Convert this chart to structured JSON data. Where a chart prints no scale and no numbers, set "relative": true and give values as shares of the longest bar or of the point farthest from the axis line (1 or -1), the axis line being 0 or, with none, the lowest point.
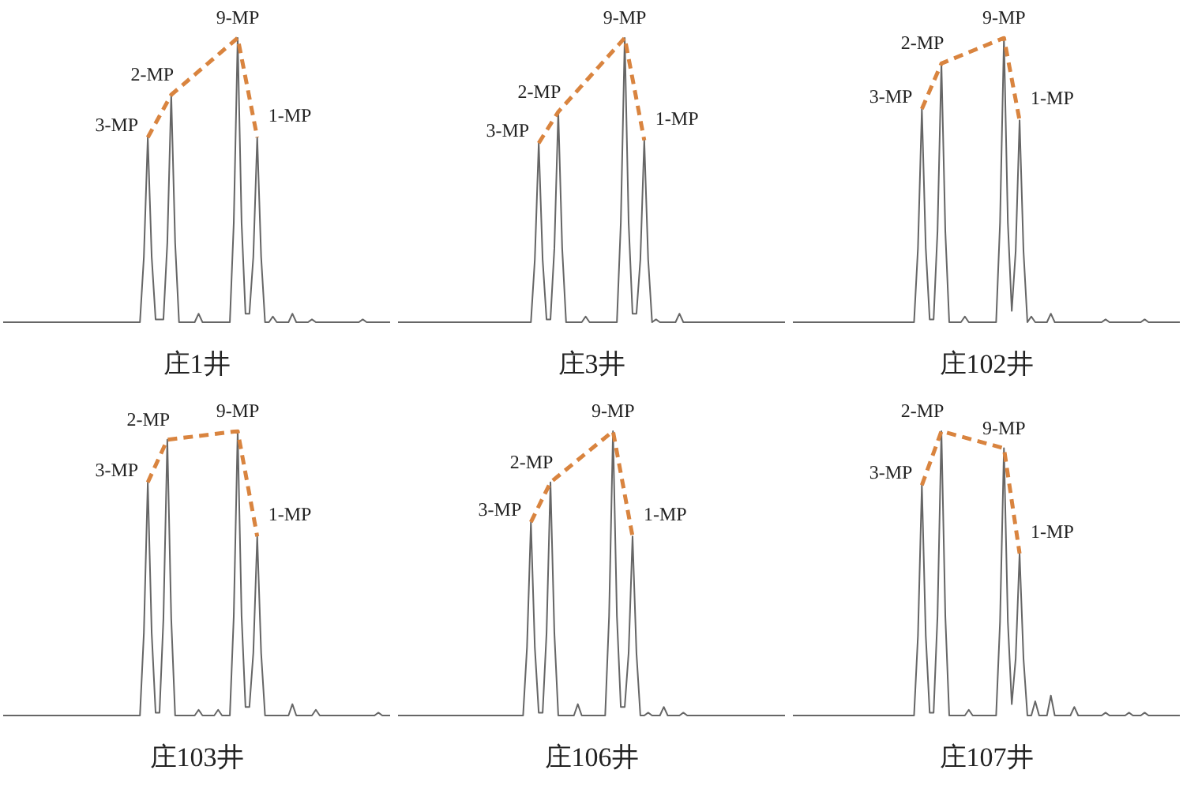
{
  "chart_data": [
    {
      "type": "line",
      "title": "庄1井",
      "relative": true,
      "tick_labels": false,
      "annotations": [
        "3-MP",
        "2-MP",
        "9-MP",
        "1-MP"
      ],
      "categories": [
        null,
        null,
        null,
        null,
        null,
        null,
        null,
        null,
        null,
        null,
        null,
        null,
        null,
        null,
        null,
        null,
        null,
        null,
        null,
        null,
        null,
        null,
        null,
        null,
        null,
        null,
        null,
        null,
        null,
        null,
        null,
        null,
        null,
        null,
        null,
        null,
        null,
        null,
        null,
        null,
        null,
        null,
        null,
        null,
        null,
        null,
        null,
        null,
        null,
        null,
        null,
        null,
        null,
        null,
        null,
        null,
        null,
        null,
        null,
        null,
        null,
        null,
        null,
        null,
        null,
        null,
        null,
        null,
        null,
        null,
        null,
        null,
        null,
        null,
        null,
        null,
        null,
        null,
        null,
        null,
        null,
        null,
        null,
        null,
        null,
        null,
        null,
        null,
        null,
        null,
        null,
        null,
        null,
        null,
        null,
        null,
        null,
        null,
        null,
        null
      ],
      "series": [
        {
          "color": "#666666",
          "values": [
            0,
            0,
            0,
            0,
            0,
            0,
            0,
            0,
            0,
            0,
            0,
            0,
            0,
            0,
            0,
            0,
            0,
            0,
            0,
            0,
            0,
            0,
            0,
            0,
            0,
            0,
            0,
            0,
            0,
            0,
            0,
            0,
            0,
            0,
            0,
            0,
            0.23,
            0.65,
            0.23,
            0.01,
            0.01,
            0.01,
            0.28,
            0.8,
            0.28,
            0,
            0,
            0,
            0,
            0,
            0.03,
            0,
            0,
            0,
            0,
            0,
            0,
            0,
            0,
            0.35,
            1,
            0.35,
            0.03,
            0.03,
            0.23,
            0.65,
            0.23,
            0,
            0,
            0.02,
            0,
            0,
            0,
            0,
            0.03,
            0,
            0,
            0,
            0,
            0.01,
            0,
            0,
            0,
            0,
            0,
            0,
            0,
            0,
            0,
            0,
            0,
            0,
            0.01,
            0,
            0,
            0,
            0,
            0,
            0,
            0
          ]
        },
        {
          "color": "#d9843f",
          "line_style": "dashed",
          "values": [
            null,
            null,
            null,
            null,
            null,
            null,
            null,
            null,
            null,
            null,
            null,
            null,
            null,
            null,
            null,
            null,
            null,
            null,
            null,
            null,
            null,
            null,
            null,
            null,
            null,
            null,
            null,
            null,
            null,
            null,
            null,
            null,
            null,
            null,
            null,
            null,
            null,
            0.65,
            null,
            null,
            null,
            null,
            null,
            0.8,
            null,
            null,
            null,
            null,
            null,
            null,
            null,
            null,
            null,
            null,
            null,
            null,
            null,
            null,
            null,
            null,
            1,
            null,
            null,
            null,
            null,
            0.65,
            null,
            null,
            null,
            null,
            null,
            null,
            null,
            null,
            null,
            null,
            null,
            null,
            null,
            null,
            null,
            null,
            null,
            null,
            null,
            null,
            null,
            null,
            null,
            null,
            null,
            null,
            null,
            null,
            null,
            null,
            null,
            null,
            null,
            null
          ]
        }
      ]
    },
    {
      "type": "line",
      "title": "庄3井",
      "relative": true,
      "tick_labels": false,
      "annotations": [
        "3-MP",
        "2-MP",
        "9-MP",
        "1-MP"
      ],
      "categories": [
        null,
        null,
        null,
        null,
        null,
        null,
        null,
        null,
        null,
        null,
        null,
        null,
        null,
        null,
        null,
        null,
        null,
        null,
        null,
        null,
        null,
        null,
        null,
        null,
        null,
        null,
        null,
        null,
        null,
        null,
        null,
        null,
        null,
        null,
        null,
        null,
        null,
        null,
        null,
        null,
        null,
        null,
        null,
        null,
        null,
        null,
        null,
        null,
        null,
        null,
        null,
        null,
        null,
        null,
        null,
        null,
        null,
        null,
        null,
        null,
        null,
        null,
        null,
        null,
        null,
        null,
        null,
        null,
        null,
        null,
        null,
        null,
        null,
        null,
        null,
        null,
        null,
        null,
        null,
        null,
        null,
        null,
        null,
        null,
        null,
        null,
        null,
        null,
        null,
        null,
        null,
        null,
        null,
        null,
        null,
        null,
        null,
        null,
        null,
        null
      ],
      "series": [
        {
          "color": "#666666",
          "values": [
            0,
            0,
            0,
            0,
            0,
            0,
            0,
            0,
            0,
            0,
            0,
            0,
            0,
            0,
            0,
            0,
            0,
            0,
            0,
            0,
            0,
            0,
            0,
            0,
            0,
            0,
            0,
            0,
            0,
            0,
            0,
            0,
            0,
            0,
            0,
            0.22,
            0.63,
            0.22,
            0.01,
            0.01,
            0.26,
            0.74,
            0.26,
            0,
            0,
            0,
            0,
            0,
            0.02,
            0,
            0,
            0,
            0,
            0,
            0,
            0,
            0,
            0.35,
            1,
            0.35,
            0.03,
            0.03,
            0.22,
            0.64,
            0.22,
            0,
            0.01,
            0,
            0,
            0,
            0,
            0,
            0.03,
            0,
            0,
            0,
            0,
            0,
            0,
            0,
            0,
            0,
            0,
            0,
            0,
            0,
            0,
            0,
            0,
            0,
            0,
            0,
            0,
            0,
            0,
            0,
            0,
            0,
            0,
            0
          ]
        },
        {
          "color": "#d9843f",
          "line_style": "dashed",
          "values": [
            null,
            null,
            null,
            null,
            null,
            null,
            null,
            null,
            null,
            null,
            null,
            null,
            null,
            null,
            null,
            null,
            null,
            null,
            null,
            null,
            null,
            null,
            null,
            null,
            null,
            null,
            null,
            null,
            null,
            null,
            null,
            null,
            null,
            null,
            null,
            null,
            0.63,
            null,
            null,
            null,
            null,
            0.74,
            null,
            null,
            null,
            null,
            null,
            null,
            null,
            null,
            null,
            null,
            null,
            null,
            null,
            null,
            null,
            null,
            1,
            null,
            null,
            null,
            null,
            0.64,
            null,
            null,
            null,
            null,
            null,
            null,
            null,
            null,
            null,
            null,
            null,
            null,
            null,
            null,
            null,
            null,
            null,
            null,
            null,
            null,
            null,
            null,
            null,
            null,
            null,
            null,
            null,
            null,
            null,
            null,
            null,
            null,
            null,
            null,
            null,
            null
          ]
        }
      ]
    },
    {
      "type": "line",
      "title": "庄102井",
      "relative": true,
      "tick_labels": false,
      "annotations": [
        "3-MP",
        "2-MP",
        "9-MP",
        "1-MP"
      ],
      "categories": [
        null,
        null,
        null,
        null,
        null,
        null,
        null,
        null,
        null,
        null,
        null,
        null,
        null,
        null,
        null,
        null,
        null,
        null,
        null,
        null,
        null,
        null,
        null,
        null,
        null,
        null,
        null,
        null,
        null,
        null,
        null,
        null,
        null,
        null,
        null,
        null,
        null,
        null,
        null,
        null,
        null,
        null,
        null,
        null,
        null,
        null,
        null,
        null,
        null,
        null,
        null,
        null,
        null,
        null,
        null,
        null,
        null,
        null,
        null,
        null,
        null,
        null,
        null,
        null,
        null,
        null,
        null,
        null,
        null,
        null,
        null,
        null,
        null,
        null,
        null,
        null,
        null,
        null,
        null,
        null,
        null,
        null,
        null,
        null,
        null,
        null,
        null,
        null,
        null,
        null,
        null,
        null,
        null,
        null,
        null,
        null,
        null,
        null,
        null,
        null
      ],
      "series": [
        {
          "color": "#666666",
          "values": [
            0,
            0,
            0,
            0,
            0,
            0,
            0,
            0,
            0,
            0,
            0,
            0,
            0,
            0,
            0,
            0,
            0,
            0,
            0,
            0,
            0,
            0,
            0,
            0,
            0,
            0,
            0,
            0,
            0,
            0,
            0,
            0,
            0.26,
            0.75,
            0.26,
            0.01,
            0.01,
            0.32,
            0.91,
            0.32,
            0,
            0,
            0,
            0,
            0.02,
            0,
            0,
            0,
            0,
            0,
            0,
            0,
            0,
            0.35,
            1,
            0.35,
            0.04,
            0.25,
            0.71,
            0.25,
            0,
            0.02,
            0,
            0,
            0,
            0,
            0.03,
            0,
            0,
            0,
            0,
            0,
            0,
            0,
            0,
            0,
            0,
            0,
            0,
            0,
            0.01,
            0,
            0,
            0,
            0,
            0,
            0,
            0,
            0,
            0,
            0.01,
            0,
            0,
            0,
            0,
            0,
            0,
            0,
            0,
            0
          ]
        },
        {
          "color": "#d9843f",
          "line_style": "dashed",
          "values": [
            null,
            null,
            null,
            null,
            null,
            null,
            null,
            null,
            null,
            null,
            null,
            null,
            null,
            null,
            null,
            null,
            null,
            null,
            null,
            null,
            null,
            null,
            null,
            null,
            null,
            null,
            null,
            null,
            null,
            null,
            null,
            null,
            null,
            0.75,
            null,
            null,
            null,
            null,
            0.91,
            null,
            null,
            null,
            null,
            null,
            null,
            null,
            null,
            null,
            null,
            null,
            null,
            null,
            null,
            null,
            1,
            null,
            null,
            null,
            0.71,
            null,
            null,
            null,
            null,
            null,
            null,
            null,
            null,
            null,
            null,
            null,
            null,
            null,
            null,
            null,
            null,
            null,
            null,
            null,
            null,
            null,
            null,
            null,
            null,
            null,
            null,
            null,
            null,
            null,
            null,
            null,
            null,
            null,
            null,
            null,
            null,
            null,
            null,
            null,
            null,
            null
          ]
        }
      ]
    },
    {
      "type": "line",
      "title": "庄103井",
      "relative": true,
      "tick_labels": false,
      "annotations": [
        "3-MP",
        "2-MP",
        "9-MP",
        "1-MP"
      ],
      "categories": [
        null,
        null,
        null,
        null,
        null,
        null,
        null,
        null,
        null,
        null,
        null,
        null,
        null,
        null,
        null,
        null,
        null,
        null,
        null,
        null,
        null,
        null,
        null,
        null,
        null,
        null,
        null,
        null,
        null,
        null,
        null,
        null,
        null,
        null,
        null,
        null,
        null,
        null,
        null,
        null,
        null,
        null,
        null,
        null,
        null,
        null,
        null,
        null,
        null,
        null,
        null,
        null,
        null,
        null,
        null,
        null,
        null,
        null,
        null,
        null,
        null,
        null,
        null,
        null,
        null,
        null,
        null,
        null,
        null,
        null,
        null,
        null,
        null,
        null,
        null,
        null,
        null,
        null,
        null,
        null,
        null,
        null,
        null,
        null,
        null,
        null,
        null,
        null,
        null,
        null,
        null,
        null,
        null,
        null,
        null,
        null,
        null,
        null,
        null,
        null
      ],
      "series": [
        {
          "color": "#666666",
          "values": [
            0,
            0,
            0,
            0,
            0,
            0,
            0,
            0,
            0,
            0,
            0,
            0,
            0,
            0,
            0,
            0,
            0,
            0,
            0,
            0,
            0,
            0,
            0,
            0,
            0,
            0,
            0,
            0,
            0,
            0,
            0,
            0,
            0,
            0,
            0,
            0,
            0.29,
            0.82,
            0.29,
            0.01,
            0.01,
            0.34,
            0.97,
            0.34,
            0,
            0,
            0,
            0,
            0,
            0,
            0.02,
            0,
            0,
            0,
            0,
            0.02,
            0,
            0,
            0,
            0.35,
            1,
            0.35,
            0.03,
            0.03,
            0.22,
            0.63,
            0.22,
            0,
            0,
            0,
            0,
            0,
            0,
            0,
            0.04,
            0,
            0,
            0,
            0,
            0,
            0.02,
            0,
            0,
            0,
            0,
            0,
            0,
            0,
            0,
            0,
            0,
            0,
            0,
            0,
            0,
            0,
            0.01,
            0,
            0,
            0
          ]
        },
        {
          "color": "#d9843f",
          "line_style": "dashed",
          "values": [
            null,
            null,
            null,
            null,
            null,
            null,
            null,
            null,
            null,
            null,
            null,
            null,
            null,
            null,
            null,
            null,
            null,
            null,
            null,
            null,
            null,
            null,
            null,
            null,
            null,
            null,
            null,
            null,
            null,
            null,
            null,
            null,
            null,
            null,
            null,
            null,
            null,
            0.82,
            null,
            null,
            null,
            null,
            0.97,
            null,
            null,
            null,
            null,
            null,
            null,
            null,
            null,
            null,
            null,
            null,
            null,
            null,
            null,
            null,
            null,
            null,
            1,
            null,
            null,
            null,
            null,
            0.63,
            null,
            null,
            null,
            null,
            null,
            null,
            null,
            null,
            null,
            null,
            null,
            null,
            null,
            null,
            null,
            null,
            null,
            null,
            null,
            null,
            null,
            null,
            null,
            null,
            null,
            null,
            null,
            null,
            null,
            null,
            null,
            null,
            null,
            null
          ]
        }
      ]
    },
    {
      "type": "line",
      "title": "庄106井",
      "relative": true,
      "tick_labels": false,
      "annotations": [
        "3-MP",
        "2-MP",
        "9-MP",
        "1-MP"
      ],
      "categories": [
        null,
        null,
        null,
        null,
        null,
        null,
        null,
        null,
        null,
        null,
        null,
        null,
        null,
        null,
        null,
        null,
        null,
        null,
        null,
        null,
        null,
        null,
        null,
        null,
        null,
        null,
        null,
        null,
        null,
        null,
        null,
        null,
        null,
        null,
        null,
        null,
        null,
        null,
        null,
        null,
        null,
        null,
        null,
        null,
        null,
        null,
        null,
        null,
        null,
        null,
        null,
        null,
        null,
        null,
        null,
        null,
        null,
        null,
        null,
        null,
        null,
        null,
        null,
        null,
        null,
        null,
        null,
        null,
        null,
        null,
        null,
        null,
        null,
        null,
        null,
        null,
        null,
        null,
        null,
        null,
        null,
        null,
        null,
        null,
        null,
        null,
        null,
        null,
        null,
        null,
        null,
        null,
        null,
        null,
        null,
        null,
        null,
        null,
        null,
        null
      ],
      "series": [
        {
          "color": "#666666",
          "values": [
            0,
            0,
            0,
            0,
            0,
            0,
            0,
            0,
            0,
            0,
            0,
            0,
            0,
            0,
            0,
            0,
            0,
            0,
            0,
            0,
            0,
            0,
            0,
            0,
            0,
            0,
            0,
            0,
            0,
            0,
            0,
            0,
            0,
            0.24,
            0.68,
            0.24,
            0.01,
            0.01,
            0.29,
            0.82,
            0.29,
            0,
            0,
            0,
            0,
            0,
            0.04,
            0,
            0,
            0,
            0,
            0,
            0,
            0,
            0.35,
            1,
            0.35,
            0.03,
            0.03,
            0.22,
            0.63,
            0.22,
            0,
            0,
            0.01,
            0,
            0,
            0,
            0.03,
            0,
            0,
            0,
            0,
            0.01,
            0,
            0,
            0,
            0,
            0,
            0,
            0,
            0,
            0,
            0,
            0,
            0,
            0,
            0,
            0,
            0,
            0,
            0,
            0,
            0,
            0,
            0,
            0,
            0,
            0,
            0
          ]
        },
        {
          "color": "#d9843f",
          "line_style": "dashed",
          "values": [
            null,
            null,
            null,
            null,
            null,
            null,
            null,
            null,
            null,
            null,
            null,
            null,
            null,
            null,
            null,
            null,
            null,
            null,
            null,
            null,
            null,
            null,
            null,
            null,
            null,
            null,
            null,
            null,
            null,
            null,
            null,
            null,
            null,
            null,
            0.68,
            null,
            null,
            null,
            null,
            0.82,
            null,
            null,
            null,
            null,
            null,
            null,
            null,
            null,
            null,
            null,
            null,
            null,
            null,
            null,
            null,
            1,
            null,
            null,
            null,
            null,
            0.63,
            null,
            null,
            null,
            null,
            null,
            null,
            null,
            null,
            null,
            null,
            null,
            null,
            null,
            null,
            null,
            null,
            null,
            null,
            null,
            null,
            null,
            null,
            null,
            null,
            null,
            null,
            null,
            null,
            null,
            null,
            null,
            null,
            null,
            null,
            null,
            null,
            null,
            null,
            null
          ]
        }
      ]
    },
    {
      "type": "line",
      "title": "庄107井",
      "relative": true,
      "tick_labels": false,
      "annotations": [
        "3-MP",
        "2-MP",
        "9-MP",
        "1-MP"
      ],
      "categories": [
        null,
        null,
        null,
        null,
        null,
        null,
        null,
        null,
        null,
        null,
        null,
        null,
        null,
        null,
        null,
        null,
        null,
        null,
        null,
        null,
        null,
        null,
        null,
        null,
        null,
        null,
        null,
        null,
        null,
        null,
        null,
        null,
        null,
        null,
        null,
        null,
        null,
        null,
        null,
        null,
        null,
        null,
        null,
        null,
        null,
        null,
        null,
        null,
        null,
        null,
        null,
        null,
        null,
        null,
        null,
        null,
        null,
        null,
        null,
        null,
        null,
        null,
        null,
        null,
        null,
        null,
        null,
        null,
        null,
        null,
        null,
        null,
        null,
        null,
        null,
        null,
        null,
        null,
        null,
        null,
        null,
        null,
        null,
        null,
        null,
        null,
        null,
        null,
        null,
        null,
        null,
        null,
        null,
        null,
        null,
        null,
        null,
        null,
        null,
        null
      ],
      "series": [
        {
          "color": "#666666",
          "values": [
            0,
            0,
            0,
            0,
            0,
            0,
            0,
            0,
            0,
            0,
            0,
            0,
            0,
            0,
            0,
            0,
            0,
            0,
            0,
            0,
            0,
            0,
            0,
            0,
            0,
            0,
            0,
            0,
            0,
            0,
            0,
            0,
            0.28,
            0.81,
            0.28,
            0.01,
            0.01,
            0.35,
            1,
            0.35,
            0,
            0,
            0,
            0,
            0,
            0.02,
            0,
            0,
            0,
            0,
            0,
            0,
            0,
            0.33,
            0.94,
            0.33,
            0.04,
            0.2,
            0.57,
            0.2,
            0,
            0,
            0.05,
            0,
            0,
            0,
            0.07,
            0,
            0,
            0,
            0,
            0,
            0.03,
            0,
            0,
            0,
            0,
            0,
            0,
            0,
            0.01,
            0,
            0,
            0,
            0,
            0,
            0.01,
            0,
            0,
            0,
            0.01,
            0,
            0,
            0,
            0,
            0,
            0,
            0,
            0,
            0
          ]
        },
        {
          "color": "#d9843f",
          "line_style": "dashed",
          "values": [
            null,
            null,
            null,
            null,
            null,
            null,
            null,
            null,
            null,
            null,
            null,
            null,
            null,
            null,
            null,
            null,
            null,
            null,
            null,
            null,
            null,
            null,
            null,
            null,
            null,
            null,
            null,
            null,
            null,
            null,
            null,
            null,
            null,
            0.81,
            null,
            null,
            null,
            null,
            1,
            null,
            null,
            null,
            null,
            null,
            null,
            null,
            null,
            null,
            null,
            null,
            null,
            null,
            null,
            null,
            0.94,
            null,
            null,
            null,
            0.57,
            null,
            null,
            null,
            null,
            null,
            null,
            null,
            null,
            null,
            null,
            null,
            null,
            null,
            null,
            null,
            null,
            null,
            null,
            null,
            null,
            null,
            null,
            null,
            null,
            null,
            null,
            null,
            null,
            null,
            null,
            null,
            null,
            null,
            null,
            null,
            null,
            null,
            null,
            null,
            null,
            null
          ]
        }
      ]
    }
  ]
}
